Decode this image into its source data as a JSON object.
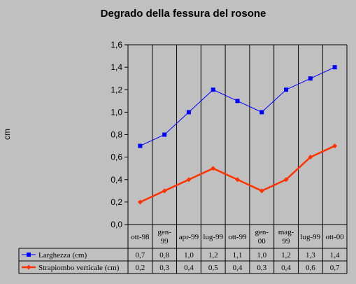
{
  "chart_data": {
    "type": "line",
    "title": "Degrado della fessura del rosone",
    "ylabel": "cm",
    "ylim": [
      0,
      1.6
    ],
    "yticks": [
      "0,0",
      "0,2",
      "0,4",
      "0,6",
      "0,8",
      "1,0",
      "1,2",
      "1,4",
      "1,6"
    ],
    "categories": [
      [
        "ott-98"
      ],
      [
        "gen-",
        "99"
      ],
      [
        "apr-99"
      ],
      [
        "lug-99"
      ],
      [
        "ott-99"
      ],
      [
        "gen-",
        "00"
      ],
      [
        "mag-",
        "99"
      ],
      [
        "lug-99"
      ],
      [
        "ott-00"
      ]
    ],
    "grid": "vertical",
    "legend": "data-table",
    "series": [
      {
        "name": "Larghezza (cm)",
        "color": "#0000ff",
        "marker": "square",
        "values": [
          0.7,
          0.8,
          1.0,
          1.2,
          1.1,
          1.0,
          1.2,
          1.3,
          1.4
        ],
        "labels": [
          "0,7",
          "0,8",
          "1,0",
          "1,2",
          "1,1",
          "1,0",
          "1,2",
          "1,3",
          "1,4"
        ]
      },
      {
        "name": "Strapiombo verticale (cm)",
        "color": "#ff3300",
        "marker": "diamond",
        "values": [
          0.2,
          0.3,
          0.4,
          0.5,
          0.4,
          0.3,
          0.4,
          0.6,
          0.7
        ],
        "labels": [
          "0,2",
          "0,3",
          "0,4",
          "0,5",
          "0,4",
          "0,3",
          "0,4",
          "0,6",
          "0,7"
        ]
      }
    ]
  }
}
